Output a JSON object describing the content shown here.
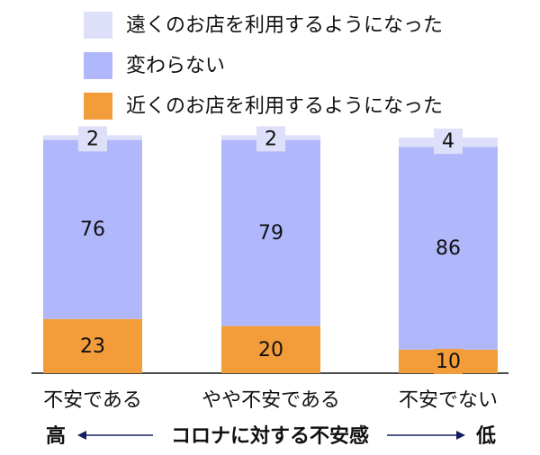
{
  "chart_data": {
    "type": "stacked_bar",
    "categories": [
      "不安である",
      "やや不安である",
      "不安でない"
    ],
    "series": [
      {
        "name": "遠くのお店を利用するようになった",
        "color": "#dde0f8",
        "values": [
          2,
          2,
          4
        ]
      },
      {
        "name": "変わらない",
        "color": "#b0b8fb",
        "values": [
          76,
          79,
          86
        ]
      },
      {
        "name": "近くのお店を利用するようになった",
        "color": "#f39c3a",
        "values": [
          23,
          20,
          10
        ]
      }
    ],
    "xlabel": "コロナに対する不安感",
    "annotations": [
      {
        "text": "高",
        "color": "#c0182a"
      },
      {
        "text": "低",
        "color": "#1f5fc0"
      }
    ]
  }
}
